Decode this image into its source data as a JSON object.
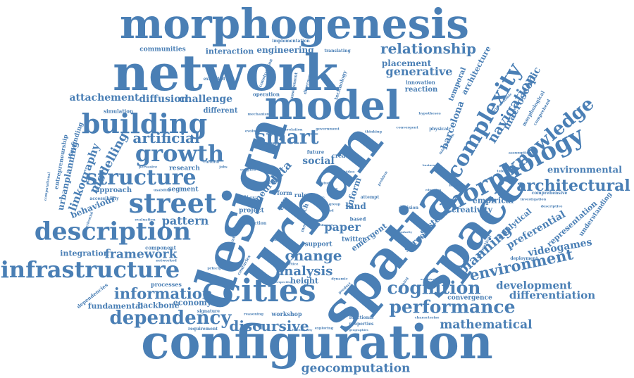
{
  "word_cloud": {
    "color": "#4a7fb5",
    "words": [
      {
        "text": "configuration",
        "weight": 100
      },
      {
        "text": "network",
        "weight": 96
      },
      {
        "text": "urban",
        "weight": 95
      },
      {
        "text": "design",
        "weight": 93
      },
      {
        "text": "spatial",
        "weight": 92
      },
      {
        "text": "morphogenesis",
        "weight": 90
      },
      {
        "text": "space",
        "weight": 88
      },
      {
        "text": "model",
        "weight": 86
      },
      {
        "text": "cities",
        "weight": 80
      },
      {
        "text": "street",
        "weight": 74
      },
      {
        "text": "building",
        "weight": 72
      },
      {
        "text": "description",
        "weight": 72
      },
      {
        "text": "infrastructure",
        "weight": 70
      },
      {
        "text": "morphology",
        "weight": 68
      },
      {
        "text": "growth",
        "weight": 64
      },
      {
        "text": "complexity",
        "weight": 62
      },
      {
        "text": "smart",
        "weight": 60
      },
      {
        "text": "structure",
        "weight": 58
      },
      {
        "text": "knowledge",
        "weight": 55
      },
      {
        "text": "dependency",
        "weight": 52
      },
      {
        "text": "performance",
        "weight": 52
      },
      {
        "text": "cognition",
        "weight": 50
      },
      {
        "text": "architectural",
        "weight": 48
      },
      {
        "text": "environment",
        "weight": 48
      },
      {
        "text": "information",
        "weight": 47
      },
      {
        "text": "relationship",
        "weight": 46
      },
      {
        "text": "planning",
        "weight": 45
      },
      {
        "text": "change",
        "weight": 45
      },
      {
        "text": "discursive",
        "weight": 43
      },
      {
        "text": "navigation",
        "weight": 42
      },
      {
        "text": "artificial",
        "weight": 42
      },
      {
        "text": "framework",
        "weight": 40
      },
      {
        "text": "geocomputation",
        "weight": 40
      },
      {
        "text": "analysis",
        "weight": 40
      },
      {
        "text": "mathematical",
        "weight": 38
      },
      {
        "text": "modelling",
        "weight": 38
      },
      {
        "text": "generative",
        "weight": 36
      },
      {
        "text": "pattern",
        "weight": 36
      },
      {
        "text": "linkography",
        "weight": 36
      },
      {
        "text": "differentiation",
        "weight": 35
      },
      {
        "text": "macroscopic",
        "weight": 35
      },
      {
        "text": "development",
        "weight": 35
      },
      {
        "text": "paper",
        "weight": 35
      },
      {
        "text": "data",
        "weight": 34
      },
      {
        "text": "social",
        "weight": 34
      },
      {
        "text": "challenge",
        "weight": 34
      },
      {
        "text": "diffusion",
        "weight": 34
      },
      {
        "text": "attachement",
        "weight": 34
      },
      {
        "text": "preferential",
        "weight": 34
      },
      {
        "text": "environmental",
        "weight": 33
      },
      {
        "text": "videogames",
        "weight": 33
      },
      {
        "text": "barcelona",
        "weight": 33
      },
      {
        "text": "engineering",
        "weight": 32
      },
      {
        "text": "placement",
        "weight": 32
      },
      {
        "text": "interaction",
        "weight": 31
      },
      {
        "text": "behaviour",
        "weight": 31
      },
      {
        "text": "urbanplanning",
        "weight": 31
      },
      {
        "text": "inform",
        "weight": 31
      },
      {
        "text": "land",
        "weight": 31
      },
      {
        "text": "system",
        "weight": 31
      },
      {
        "text": "screen",
        "weight": 31
      },
      {
        "text": "neural",
        "weight": 31
      },
      {
        "text": "emergent",
        "weight": 31
      },
      {
        "text": "height",
        "weight": 30
      },
      {
        "text": "economy",
        "weight": 30
      },
      {
        "text": "fundamental",
        "weight": 30
      },
      {
        "text": "backbone",
        "weight": 30
      },
      {
        "text": "empirical",
        "weight": 30
      },
      {
        "text": "creativity",
        "weight": 30
      },
      {
        "text": "analytical",
        "weight": 30
      },
      {
        "text": "representation",
        "weight": 30
      },
      {
        "text": "architecture",
        "weight": 30
      },
      {
        "text": "temporal",
        "weight": 30
      },
      {
        "text": "integration",
        "weight": 29
      },
      {
        "text": "communities",
        "weight": 28
      },
      {
        "text": "approach",
        "weight": 28
      },
      {
        "text": "different",
        "weight": 28
      },
      {
        "text": "research",
        "weight": 28
      },
      {
        "text": "segment",
        "weight": 28
      },
      {
        "text": "policy",
        "weight": 28
      },
      {
        "text": "project",
        "weight": 28
      },
      {
        "text": "twitter",
        "weight": 28
      },
      {
        "text": "support",
        "weight": 28
      },
      {
        "text": "reaction",
        "weight": 28
      },
      {
        "text": "convergence",
        "weight": 28
      },
      {
        "text": "wayfinding",
        "weight": 28
      },
      {
        "text": "understanding",
        "weight": 28
      },
      {
        "text": "workshop",
        "weight": 27
      },
      {
        "text": "processes",
        "weight": 27
      },
      {
        "text": "component",
        "weight": 26
      },
      {
        "text": "simulation",
        "weight": 26
      },
      {
        "text": "entrepreneurship",
        "weight": 26
      },
      {
        "text": "innovation",
        "weight": 26
      },
      {
        "text": "creative",
        "weight": 26
      },
      {
        "text": "future",
        "weight": 25
      },
      {
        "text": "based",
        "weight": 25
      },
      {
        "text": "technology",
        "weight": 25
      },
      {
        "text": "operation",
        "weight": 25
      },
      {
        "text": "morphological",
        "weight": 25
      },
      {
        "text": "comprehensive",
        "weight": 24
      },
      {
        "text": "assessment",
        "weight": 24
      },
      {
        "text": "signature",
        "weight": 24
      },
      {
        "text": "requirement",
        "weight": 24
      },
      {
        "text": "properties",
        "weight": 24
      },
      {
        "text": "functional",
        "weight": 24
      },
      {
        "text": "deployment",
        "weight": 24
      },
      {
        "text": "theoretical",
        "weight": 24
      },
      {
        "text": "dependencies",
        "weight": 24
      },
      {
        "text": "accessibility",
        "weight": 24
      },
      {
        "text": "implementation",
        "weight": 22
      },
      {
        "text": "translating",
        "weight": 22
      },
      {
        "text": "extended",
        "weight": 22
      },
      {
        "text": "construction",
        "weight": 22
      },
      {
        "text": "divergence",
        "weight": 22
      },
      {
        "text": "mechanisms",
        "weight": 22
      },
      {
        "text": "evolution",
        "weight": 22
      },
      {
        "text": "physical",
        "weight": 22
      },
      {
        "text": "convergent",
        "weight": 22
      },
      {
        "text": "hypotheses",
        "weight": 22
      },
      {
        "text": "comprehend",
        "weight": 22
      },
      {
        "text": "intervention",
        "weight": 22
      },
      {
        "text": "telematics",
        "weight": 22
      },
      {
        "text": "investigation",
        "weight": 22
      },
      {
        "text": "networked",
        "weight": 22
      },
      {
        "text": "evaluation",
        "weight": 22
      },
      {
        "text": "usability",
        "weight": 22
      },
      {
        "text": "pervasive",
        "weight": 22
      },
      {
        "text": "practice",
        "weight": 22
      },
      {
        "text": "principle",
        "weight": 22
      },
      {
        "text": "reasoning",
        "weight": 22
      },
      {
        "text": "exploring",
        "weight": 22
      },
      {
        "text": "dynamic",
        "weight": 22
      },
      {
        "text": "teaching",
        "weight": 22
      },
      {
        "text": "attempt",
        "weight": 22
      },
      {
        "text": "decision",
        "weight": 22
      },
      {
        "text": "function",
        "weight": 22
      },
      {
        "text": "centuries",
        "weight": 22
      },
      {
        "text": "computational",
        "weight": 22
      },
      {
        "text": "experiential",
        "weight": 22
      },
      {
        "text": "form",
        "weight": 22
      },
      {
        "text": "rule",
        "weight": 22
      },
      {
        "text": "tech",
        "weight": 22
      },
      {
        "text": "city",
        "weight": 22
      },
      {
        "text": "study",
        "weight": 22
      },
      {
        "text": "media",
        "weight": 22
      },
      {
        "text": "proc",
        "weight": 22
      },
      {
        "text": "trend",
        "weight": 22
      },
      {
        "text": "cultural",
        "weight": 22
      },
      {
        "text": "coupled",
        "weight": 22
      },
      {
        "text": "thinking",
        "weight": 22
      },
      {
        "text": "government",
        "weight": 22
      },
      {
        "text": "correlation",
        "weight": 22
      },
      {
        "text": "method",
        "weight": 22
      },
      {
        "text": "education",
        "weight": 22
      },
      {
        "text": "assumption",
        "weight": 22
      },
      {
        "text": "socioeconomic",
        "weight": 22
      },
      {
        "text": "descriptive",
        "weight": 22
      },
      {
        "text": "characterise",
        "weight": 22
      },
      {
        "text": "organization",
        "weight": 22
      },
      {
        "text": "geographies",
        "weight": 22
      },
      {
        "text": "functionality",
        "weight": 22
      },
      {
        "text": "product",
        "weight": 22
      },
      {
        "text": "perspective",
        "weight": 22
      },
      {
        "text": "interface",
        "weight": 22
      },
      {
        "text": "game",
        "weight": 22
      },
      {
        "text": "jobs",
        "weight": 22
      },
      {
        "text": "time",
        "weight": 22
      },
      {
        "text": "group",
        "weight": 22
      },
      {
        "text": "video",
        "weight": 22
      },
      {
        "text": "problem",
        "weight": 22
      },
      {
        "text": "businesses",
        "weight": 22
      },
      {
        "text": "academic",
        "weight": 22
      },
      {
        "text": "dedicated",
        "weight": 22
      },
      {
        "text": "samples",
        "weight": 22
      },
      {
        "text": "regularity",
        "weight": 22
      }
    ]
  }
}
